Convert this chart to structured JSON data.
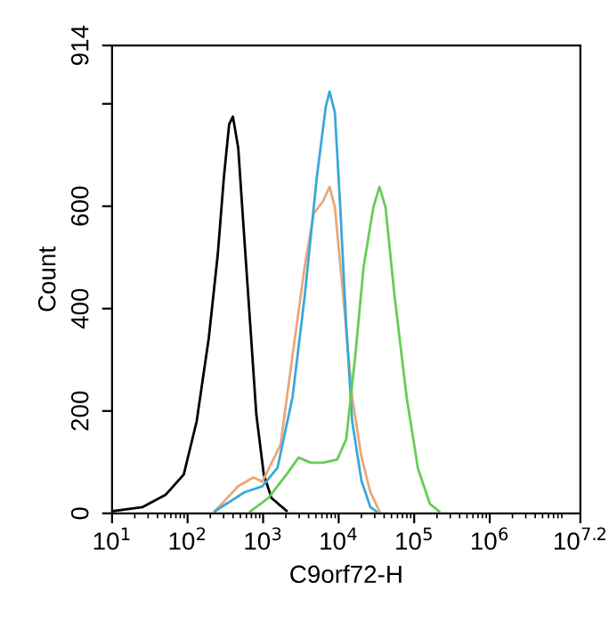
{
  "chart_data": {
    "type": "line",
    "xlabel": "C9orf72-H",
    "ylabel": "Count",
    "log": "x",
    "grid": false,
    "legend": false,
    "marker": "none",
    "line_style": "solid",
    "xlim": [
      10,
      15848932
    ],
    "ylim": [
      0,
      914
    ],
    "xticks": [
      {
        "value": 10,
        "label": "10$^{1}$"
      },
      {
        "value": 100,
        "label": "10$^{2}$"
      },
      {
        "value": 1000,
        "label": "10$^{3}$"
      },
      {
        "value": 10000,
        "label": "10$^{4}$"
      },
      {
        "value": 100000,
        "label": "10$^{5}$"
      },
      {
        "value": 1000000,
        "label": "10$^{6}$"
      },
      {
        "value": 15848932,
        "label": "10$^{7.2}$"
      }
    ],
    "yticks": [
      0,
      200,
      400,
      600,
      {
        "value": 800,
        "label": null
      },
      914
    ],
    "series": [
      {
        "color": "#000000",
        "x": [
          10,
          25,
          51,
          89,
          132,
          191,
          251,
          302,
          355,
          398,
          468,
          562,
          676,
          813,
          1020,
          1290,
          2040
        ],
        "values": [
          4,
          12,
          36,
          76,
          180,
          343,
          506,
          656,
          760,
          775,
          714,
          540,
          367,
          193,
          76,
          30,
          5
        ]
      },
      {
        "color": "#e8a878",
        "x": [
          229,
          468,
          741,
          977,
          1700,
          2450,
          3550,
          4680,
          6170,
          7590,
          8910,
          11500,
          15100,
          20000,
          26300,
          34700
        ],
        "values": [
          4,
          53,
          70,
          62,
          134,
          308,
          482,
          586,
          609,
          638,
          598,
          424,
          227,
          111,
          41,
          4
        ]
      },
      {
        "color": "#3aa8d8",
        "x": [
          229,
          562,
          977,
          1550,
          2450,
          3550,
          5130,
          6760,
          7590,
          8910,
          10500,
          12600,
          15100,
          20000,
          26300,
          31600
        ],
        "values": [
          4,
          41,
          53,
          89,
          227,
          424,
          656,
          795,
          824,
          783,
          598,
          366,
          180,
          64,
          12,
          4
        ]
      },
      {
        "color": "#66cc55",
        "x": [
          676,
          1170,
          2040,
          2950,
          4270,
          6170,
          9550,
          12600,
          16600,
          21400,
          28800,
          34700,
          41700,
          55000,
          79400,
          112000,
          162000,
          214000
        ],
        "values": [
          4,
          30,
          76,
          109,
          99,
          99,
          105,
          145,
          308,
          482,
          598,
          638,
          598,
          424,
          227,
          88,
          18,
          4
        ]
      }
    ]
  }
}
